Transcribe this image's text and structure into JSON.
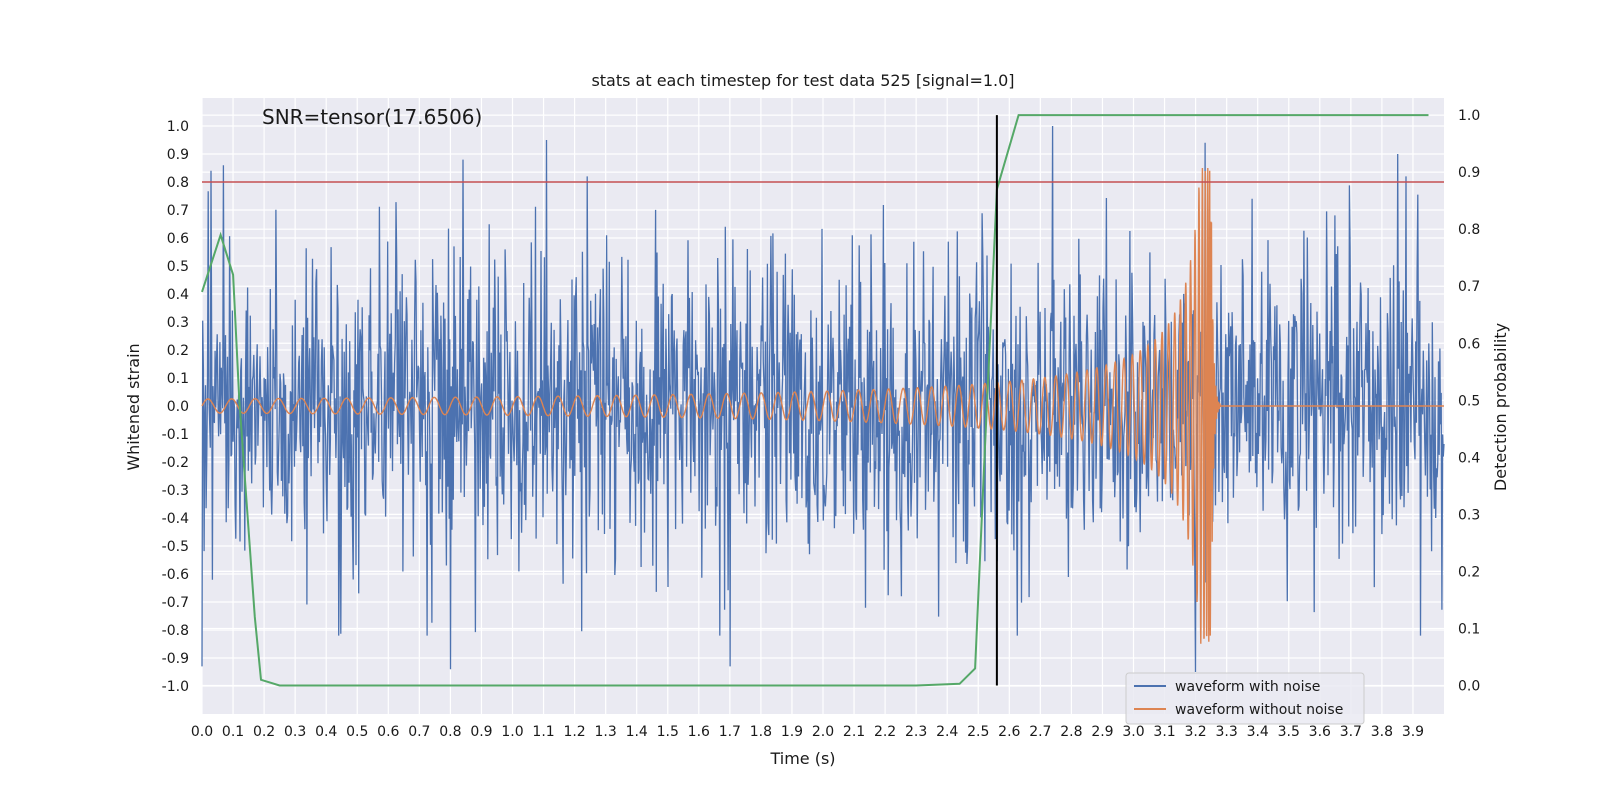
{
  "chart_data": {
    "type": "line",
    "title": "stats at each timestep for test data 525 [signal=1.0]",
    "annotation": "SNR=tensor(17.6506)",
    "xlabel": "Time (s)",
    "ylabel_left": "Whitened strain",
    "ylabel_right": "Detection probability",
    "xlim": [
      0.0,
      4.0
    ],
    "ylim_left": [
      -1.1,
      1.1
    ],
    "ylim_right": [
      -0.05,
      1.03
    ],
    "grid": true,
    "legend_position": "lower-right",
    "x_ticks": [
      "0.0",
      "0.1",
      "0.2",
      "0.3",
      "0.4",
      "0.5",
      "0.6",
      "0.7",
      "0.8",
      "0.9",
      "1.0",
      "1.1",
      "1.2",
      "1.3",
      "1.4",
      "1.5",
      "1.6",
      "1.7",
      "1.8",
      "1.9",
      "2.0",
      "2.1",
      "2.2",
      "2.3",
      "2.4",
      "2.5",
      "2.6",
      "2.7",
      "2.8",
      "2.9",
      "3.0",
      "3.1",
      "3.2",
      "3.3",
      "3.4",
      "3.5",
      "3.6",
      "3.7",
      "3.8",
      "3.9"
    ],
    "y_ticks_left": [
      "-1.0",
      "-0.9",
      "-0.8",
      "-0.7",
      "-0.6",
      "-0.5",
      "-0.4",
      "-0.3",
      "-0.2",
      "-0.1",
      "0.0",
      "0.1",
      "0.2",
      "0.3",
      "0.4",
      "0.5",
      "0.6",
      "0.7",
      "0.8",
      "0.9",
      "1.0"
    ],
    "y_ticks_right": [
      "0.0",
      "0.1",
      "0.2",
      "0.3",
      "0.4",
      "0.5",
      "0.6",
      "0.7",
      "0.8",
      "0.9",
      "1.0"
    ],
    "threshold": {
      "y": 0.8,
      "color": "#c44e52"
    },
    "marker_line": {
      "x": 2.56,
      "color": "#000000"
    },
    "series": [
      {
        "name": "waveform with noise",
        "axis": "left",
        "color": "#4c72b0",
        "noise_std": 0.28,
        "num_points": 1800,
        "notable_peaks": [
          {
            "x": 0.03,
            "y": 0.84
          },
          {
            "x": 0.07,
            "y": 0.86
          },
          {
            "x": 0.84,
            "y": 0.88
          },
          {
            "x": 1.11,
            "y": 0.95
          },
          {
            "x": 2.74,
            "y": 1.0
          },
          {
            "x": 3.23,
            "y": 0.94
          },
          {
            "x": 3.85,
            "y": 0.9
          },
          {
            "x": 0.0,
            "y": -0.93
          },
          {
            "x": 0.8,
            "y": -0.94
          },
          {
            "x": 1.7,
            "y": -0.93
          },
          {
            "x": 3.2,
            "y": -0.95
          }
        ]
      },
      {
        "name": "waveform without noise",
        "axis": "left",
        "color": "#dd8452",
        "description_values": {
          "start_amplitude": 0.025,
          "amplitude_at_2_5": 0.1,
          "peak_amplitude": 0.85,
          "merger_time": 3.25,
          "ringdown_end": 3.28
        }
      },
      {
        "name": "",
        "axis": "right",
        "color": "#55a868",
        "x": [
          0.0,
          0.06,
          0.1,
          0.12,
          0.17,
          0.19,
          0.25,
          0.8,
          1.5,
          2.3,
          2.44,
          2.49,
          2.52,
          2.56,
          2.63,
          3.95
        ],
        "y": [
          0.69,
          0.79,
          0.72,
          0.5,
          0.12,
          0.01,
          0.0,
          0.0,
          0.0,
          0.0,
          0.003,
          0.03,
          0.4,
          0.87,
          1.0,
          1.0
        ]
      }
    ],
    "legend": [
      "waveform with noise",
      "waveform without noise"
    ]
  }
}
